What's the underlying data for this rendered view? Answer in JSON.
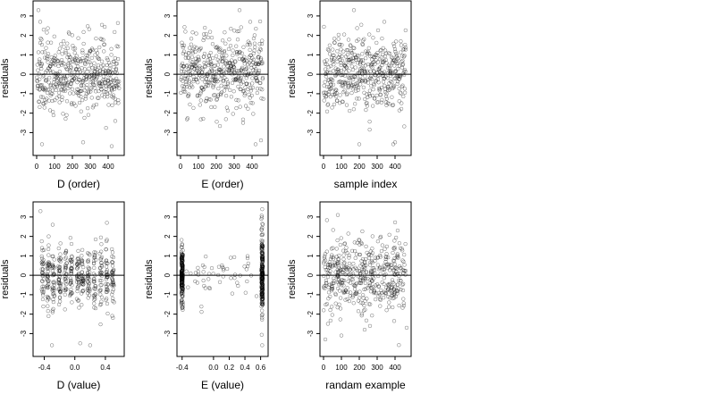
{
  "chart_data": [
    {
      "type": "scatter",
      "xlabel": "D (order)",
      "ylabel": "residuals",
      "xlim": [
        0,
        470
      ],
      "ylim": [
        -3.9,
        3.5
      ],
      "xticks": [
        0,
        100,
        200,
        300,
        400
      ],
      "yticks": [
        -3,
        -2,
        -1,
        0,
        1,
        2,
        3
      ],
      "hline": 0,
      "pattern": "sorted_index",
      "n_points": 470,
      "seed": 11,
      "points": [
        {
          "x": 10,
          "y": 3.3
        },
        {
          "x": 20,
          "y": 2.7
        },
        {
          "x": 30,
          "y": -3.6
        },
        {
          "x": 260,
          "y": -3.5
        },
        {
          "x": 420,
          "y": -3.7
        },
        {
          "x": 440,
          "y": -2.4
        }
      ]
    },
    {
      "type": "scatter",
      "xlabel": "E (order)",
      "ylabel": "residuals",
      "xlim": [
        0,
        470
      ],
      "ylim": [
        -3.9,
        3.5
      ],
      "xticks": [
        0,
        100,
        200,
        300,
        400
      ],
      "yticks": [
        -3,
        -2,
        -1,
        0,
        1,
        2,
        3
      ],
      "hline": 0,
      "pattern": "sorted_index",
      "n_points": 470,
      "seed": 23,
      "points": [
        {
          "x": 330,
          "y": 3.3
        },
        {
          "x": 390,
          "y": 2.7
        },
        {
          "x": 420,
          "y": -3.6
        },
        {
          "x": 450,
          "y": -3.4
        },
        {
          "x": 350,
          "y": -2.5
        }
      ]
    },
    {
      "type": "scatter",
      "xlabel": "sample index",
      "ylabel": "residuals",
      "xlim": [
        0,
        470
      ],
      "ylim": [
        -3.9,
        3.5
      ],
      "xticks": [
        0,
        100,
        200,
        300,
        400
      ],
      "yticks": [
        -3,
        -2,
        -1,
        0,
        1,
        2,
        3
      ],
      "hline": 0,
      "pattern": "index",
      "n_points": 470,
      "seed": 37,
      "points": [
        {
          "x": 170,
          "y": 3.3
        },
        {
          "x": 200,
          "y": -3.6
        },
        {
          "x": 390,
          "y": -3.6
        },
        {
          "x": 400,
          "y": -3.5
        },
        {
          "x": 340,
          "y": 2.7
        }
      ]
    },
    {
      "type": "scatter",
      "xlabel": "D (value)",
      "ylabel": "residuals",
      "xlim": [
        -0.5,
        0.6
      ],
      "ylim": [
        -3.9,
        3.5
      ],
      "xticks": [
        -0.4,
        0.0,
        0.4
      ],
      "xticklabels": [
        "-0.4",
        "0.0",
        "0.4"
      ],
      "yticks": [
        -3,
        -2,
        -1,
        0,
        1,
        2,
        3
      ],
      "hline": 0,
      "pattern": "value_d",
      "n_points": 470,
      "seed": 53,
      "points": [
        {
          "x": -0.45,
          "y": 3.3
        },
        {
          "x": 0.07,
          "y": -3.5
        },
        {
          "x": -0.3,
          "y": -3.6
        },
        {
          "x": 0.42,
          "y": 2.7
        },
        {
          "x": 0.2,
          "y": -3.6
        }
      ]
    },
    {
      "type": "scatter",
      "xlabel": "E (value)",
      "ylabel": "residuals",
      "xlim": [
        -0.42,
        0.65
      ],
      "ylim": [
        -3.9,
        3.5
      ],
      "xticks": [
        -0.4,
        0.0,
        0.2,
        0.4,
        0.6
      ],
      "xticklabels": [
        "-0.4",
        "0.0",
        "0.2",
        "0.4",
        "0.6"
      ],
      "yticks": [
        -3,
        -2,
        -1,
        0,
        1,
        2,
        3
      ],
      "hline": 0,
      "pattern": "value_e",
      "n_points": 470,
      "seed": 71,
      "points": [
        {
          "x": 0.62,
          "y": 3.4
        },
        {
          "x": 0.61,
          "y": 2.9
        },
        {
          "x": 0.62,
          "y": -3.6
        },
        {
          "x": -0.4,
          "y": 1.6
        },
        {
          "x": -0.39,
          "y": -1.5
        }
      ]
    },
    {
      "type": "scatter",
      "xlabel": "randam example",
      "ylabel": "residuals",
      "xlim": [
        0,
        470
      ],
      "ylim": [
        -3.9,
        3.5
      ],
      "xticks": [
        0,
        100,
        200,
        300,
        400
      ],
      "yticks": [
        -3,
        -2,
        -1,
        0,
        1,
        2,
        3
      ],
      "hline": 0,
      "pattern": "random",
      "n_points": 470,
      "seed": 89,
      "points": [
        {
          "x": 10,
          "y": -3.3
        },
        {
          "x": 100,
          "y": -3.1
        },
        {
          "x": 80,
          "y": 3.1
        },
        {
          "x": 230,
          "y": -2.8
        },
        {
          "x": 465,
          "y": -2.7
        }
      ]
    }
  ]
}
